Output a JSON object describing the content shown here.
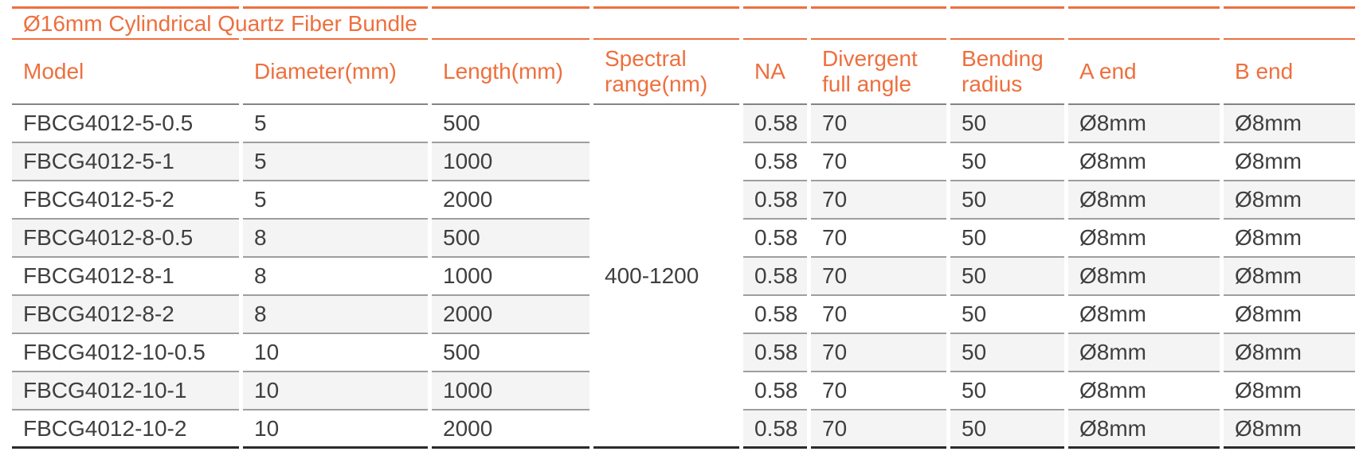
{
  "page": {
    "accent_color": "#ee6f3e",
    "text_color": "#3f3f3f",
    "shade_color": "#f4f4f5",
    "background": "#ffffff"
  },
  "table": {
    "title": "Ø16mm Cylindrical Quartz Fiber Bundle",
    "columns": [
      "Model",
      "Diameter(mm)",
      "Length(mm)",
      "Spectral range(nm)",
      "NA",
      "Divergent full angle",
      "Bending radius",
      "A end",
      "B end"
    ],
    "spectral_range": "400-1200",
    "rows": [
      {
        "model": "FBCG4012-5-0.5",
        "diameter": "5",
        "length": "500",
        "na": "0.58",
        "divergent_full_angle": "70",
        "bending_radius": "50",
        "a_end": "Ø8mm",
        "b_end": "Ø8mm"
      },
      {
        "model": "FBCG4012-5-1",
        "diameter": "5",
        "length": "1000",
        "na": "0.58",
        "divergent_full_angle": "70",
        "bending_radius": "50",
        "a_end": "Ø8mm",
        "b_end": "Ø8mm"
      },
      {
        "model": "FBCG4012-5-2",
        "diameter": "5",
        "length": "2000",
        "na": "0.58",
        "divergent_full_angle": "70",
        "bending_radius": "50",
        "a_end": "Ø8mm",
        "b_end": "Ø8mm"
      },
      {
        "model": "FBCG4012-8-0.5",
        "diameter": "8",
        "length": "500",
        "na": "0.58",
        "divergent_full_angle": "70",
        "bending_radius": "50",
        "a_end": "Ø8mm",
        "b_end": "Ø8mm"
      },
      {
        "model": "FBCG4012-8-1",
        "diameter": "8",
        "length": "1000",
        "na": "0.58",
        "divergent_full_angle": "70",
        "bending_radius": "50",
        "a_end": "Ø8mm",
        "b_end": "Ø8mm"
      },
      {
        "model": "FBCG4012-8-2",
        "diameter": "8",
        "length": "2000",
        "na": "0.58",
        "divergent_full_angle": "70",
        "bending_radius": "50",
        "a_end": "Ø8mm",
        "b_end": "Ø8mm"
      },
      {
        "model": "FBCG4012-10-0.5",
        "diameter": "10",
        "length": "500",
        "na": "0.58",
        "divergent_full_angle": "70",
        "bending_radius": "50",
        "a_end": "Ø8mm",
        "b_end": "Ø8mm"
      },
      {
        "model": "FBCG4012-10-1",
        "diameter": "10",
        "length": "1000",
        "na": "0.58",
        "divergent_full_angle": "70",
        "bending_radius": "50",
        "a_end": "Ø8mm",
        "b_end": "Ø8mm"
      },
      {
        "model": "FBCG4012-10-2",
        "diameter": "10",
        "length": "2000",
        "na": "0.58",
        "divergent_full_angle": "70",
        "bending_radius": "50",
        "a_end": "Ø8mm",
        "b_end": "Ø8mm"
      }
    ]
  }
}
